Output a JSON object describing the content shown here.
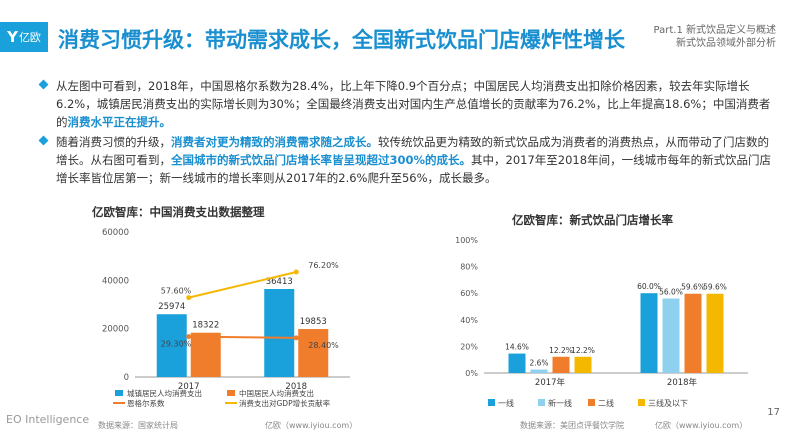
{
  "header": {
    "logo_text": "亿欧",
    "title": "消费习惯升级：带动需求成长，全国新式饮品门店爆炸性增长",
    "part_line1": "Part.1 新式饮品定义与概述",
    "part_line2": "新式饮品领域外部分析"
  },
  "bullets": [
    {
      "text_a": "从左图中可看到，2018年，中国恩格尔系数为28.4%，比上年下降0.9个百分点；中国居民人均消费支出扣除价格因素，较去年实际增长6.2%，城镇居民消费支出的实际增长则为30%；全国最终消费支出对国内生产总值增长的贡献率为76.2%，比上年提高18.6%；中国消费者的",
      "hl_a": "消费水平正在提升。",
      "text_b": "",
      "hl_b": "",
      "text_c": ""
    },
    {
      "text_a": "随着消费习惯的升级，",
      "hl_a": "消费者对更为精致的消费需求随之成长。",
      "text_b": "较传统饮品更为精致的新式饮品成为消费者的消费热点，从而带动了门店数的增长。从右图可看到，",
      "hl_b": "全国城市的新式饮品门店增长率皆呈现超过300%的成长。",
      "text_c": "其中，2017年至2018年间，一线城市每年的新式饮品门店增长率皆位居第一；新一线城市的增长率则从2017年的2.6%爬升至56%，成长最多。"
    }
  ],
  "chart_data": [
    {
      "type": "bar",
      "title": "亿欧智库：中国消费支出数据整理",
      "categories": [
        "2017",
        "2018"
      ],
      "ylim": [
        0,
        60000
      ],
      "yticks": [
        "0",
        "20000",
        "40000",
        "60000"
      ],
      "series": [
        {
          "name": "城镇居民人均消费支出",
          "values": [
            25974,
            36413
          ],
          "labels": [
            "25974",
            "36413"
          ],
          "color": "#1aa0db"
        },
        {
          "name": "中国居民人均消费支出",
          "values": [
            18322,
            19853
          ],
          "labels": [
            "18322",
            "19853"
          ],
          "color": "#f07d2c"
        }
      ],
      "lines": [
        {
          "name": "恩格尔系数",
          "values": [
            29.3,
            28.4
          ],
          "labels": [
            "29.30%",
            "28.40%"
          ],
          "color": "#f07d2c"
        },
        {
          "name": "消费支出对GDP增长贡献率",
          "values": [
            57.6,
            76.2
          ],
          "labels": [
            "57.60%",
            "76.20%"
          ],
          "color": "#f5b800"
        }
      ],
      "legend": [
        "城镇居民人均消费支出",
        "中国居民人均消费支出",
        "恩格尔系数",
        "消费支出对GDP增长贡献率"
      ],
      "source": "数据来源：国家统计局",
      "credit": "亿欧（www.iyiou.com）"
    },
    {
      "type": "bar",
      "title": "亿欧智库：新式饮品门店增长率",
      "categories": [
        "2017年",
        "2018年"
      ],
      "ylim": [
        0,
        100
      ],
      "yticks": [
        "0%",
        "20%",
        "40%",
        "60%",
        "80%",
        "100%"
      ],
      "series": [
        {
          "name": "一线",
          "values": [
            14.6,
            60.0
          ],
          "labels": [
            "14.6%",
            "60.0%"
          ],
          "color": "#1aa0db"
        },
        {
          "name": "新一线",
          "values": [
            2.6,
            56.0
          ],
          "labels": [
            "2.6%",
            "56.0%"
          ],
          "color": "#8fd0ee"
        },
        {
          "name": "二线",
          "values": [
            12.2,
            59.6
          ],
          "labels": [
            "12.2%",
            "59.6%"
          ],
          "color": "#f07d2c"
        },
        {
          "name": "三线及以下",
          "values": [
            12.2,
            59.6
          ],
          "labels": [
            "12.2%",
            "59.6%"
          ],
          "color": "#f5b800"
        }
      ],
      "legend": [
        "一线",
        "新一线",
        "二线",
        "三线及以下"
      ],
      "source": "数据来源：美团点评餐饮学院",
      "credit": "亿欧（www.iyiou.com）"
    }
  ],
  "footer": {
    "brand": "EO Intelligence",
    "page": "17"
  }
}
